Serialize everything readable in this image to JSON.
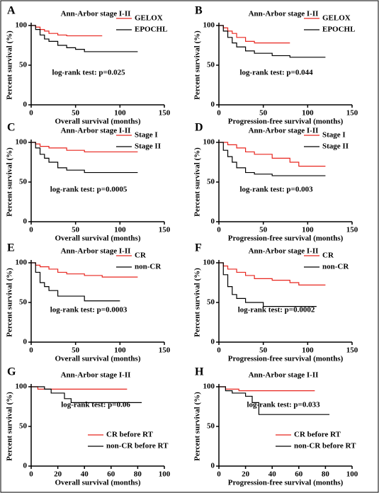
{
  "chart_data": [
    {
      "type": "line",
      "panel": "A",
      "title": "Ann-Arbor stage I-II",
      "xlabel": "Overall survival (months)",
      "ylabel": "Percent survival (%)",
      "annotation": "log-rank test: p=0.025",
      "legend": "upper right",
      "xlim": [
        0,
        150
      ],
      "xticks": [
        0,
        50,
        100,
        150
      ],
      "ylim": [
        0,
        100
      ],
      "yticks": [
        0,
        50,
        100
      ],
      "series": [
        {
          "name": "GELOX",
          "color": "#e8261f",
          "x": [
            0,
            5,
            10,
            15,
            20,
            30,
            40,
            80
          ],
          "values": [
            100,
            98,
            95,
            93,
            90,
            88,
            87,
            87
          ]
        },
        {
          "name": "EPOCHL",
          "color": "#000000",
          "x": [
            0,
            5,
            10,
            15,
            20,
            30,
            40,
            50,
            60,
            120
          ],
          "values": [
            100,
            95,
            88,
            83,
            80,
            75,
            72,
            70,
            67,
            67
          ]
        }
      ]
    },
    {
      "type": "line",
      "panel": "B",
      "title": "Ann-Arbor stage I-II",
      "xlabel": "Progression-free survival (months)",
      "ylabel": "Percent survival (%)",
      "annotation": "log-rank test: p=0.044",
      "legend": "upper right",
      "xlim": [
        0,
        150
      ],
      "xticks": [
        0,
        50,
        100,
        150
      ],
      "ylim": [
        0,
        100
      ],
      "yticks": [
        0,
        50,
        100
      ],
      "series": [
        {
          "name": "GELOX",
          "color": "#e8261f",
          "x": [
            0,
            5,
            10,
            15,
            20,
            30,
            40,
            80
          ],
          "values": [
            100,
            97,
            93,
            90,
            85,
            80,
            78,
            78
          ]
        },
        {
          "name": "EPOCHL",
          "color": "#000000",
          "x": [
            0,
            5,
            10,
            15,
            20,
            30,
            40,
            60,
            80,
            120
          ],
          "values": [
            100,
            93,
            85,
            78,
            73,
            68,
            65,
            62,
            60,
            60
          ]
        }
      ]
    },
    {
      "type": "line",
      "panel": "C",
      "title": "Ann-Arbor stage I-II",
      "xlabel": "Overall survival (months)",
      "ylabel": "Percent survival (%)",
      "annotation": "log-rank test: p=0.0005",
      "legend": "upper right",
      "xlim": [
        0,
        150
      ],
      "xticks": [
        0,
        50,
        100,
        150
      ],
      "ylim": [
        0,
        100
      ],
      "yticks": [
        0,
        50,
        100
      ],
      "series": [
        {
          "name": "Stage I",
          "color": "#e8261f",
          "x": [
            0,
            5,
            10,
            20,
            40,
            60,
            120
          ],
          "values": [
            100,
            98,
            95,
            93,
            90,
            88,
            88
          ]
        },
        {
          "name": "Stage II",
          "color": "#000000",
          "x": [
            0,
            5,
            10,
            15,
            20,
            30,
            40,
            60,
            120
          ],
          "values": [
            100,
            93,
            85,
            80,
            75,
            68,
            65,
            62,
            62
          ]
        }
      ]
    },
    {
      "type": "line",
      "panel": "D",
      "title": "Ann-Arbor stage I-II",
      "xlabel": "Progression-free survival (months)",
      "ylabel": "Percent survival (%)",
      "annotation": "log-rank test: p=0.003",
      "legend": "upper right",
      "xlim": [
        0,
        150
      ],
      "xticks": [
        0,
        50,
        100,
        150
      ],
      "ylim": [
        0,
        100
      ],
      "yticks": [
        0,
        50,
        100
      ],
      "series": [
        {
          "name": "Stage I",
          "color": "#e8261f",
          "x": [
            0,
            10,
            20,
            30,
            40,
            60,
            80,
            90,
            120
          ],
          "values": [
            100,
            97,
            93,
            88,
            85,
            80,
            75,
            70,
            70
          ]
        },
        {
          "name": "Stage II",
          "color": "#000000",
          "x": [
            0,
            5,
            10,
            15,
            20,
            30,
            40,
            60,
            120
          ],
          "values": [
            100,
            90,
            82,
            75,
            68,
            62,
            60,
            58,
            58
          ]
        }
      ]
    },
    {
      "type": "line",
      "panel": "E",
      "title": "Ann-Arbor stage I-II",
      "xlabel": "Overall survival (months)",
      "ylabel": "Percent survival (%)",
      "annotation": "log-rank test: p=0.0003",
      "legend": "upper right",
      "xlim": [
        0,
        150
      ],
      "xticks": [
        0,
        50,
        100,
        150
      ],
      "ylim": [
        0,
        100
      ],
      "yticks": [
        0,
        50,
        100
      ],
      "series": [
        {
          "name": "CR",
          "color": "#e8261f",
          "x": [
            0,
            5,
            10,
            20,
            30,
            40,
            60,
            80,
            120
          ],
          "values": [
            100,
            97,
            95,
            92,
            88,
            86,
            84,
            82,
            82
          ]
        },
        {
          "name": "non-CR",
          "color": "#000000",
          "x": [
            0,
            5,
            10,
            15,
            20,
            30,
            60,
            100
          ],
          "values": [
            100,
            88,
            75,
            70,
            65,
            58,
            52,
            52
          ]
        }
      ]
    },
    {
      "type": "line",
      "panel": "F",
      "title": "Ann-Arbor stage I-II",
      "xlabel": "Progression-free survival (months)",
      "ylabel": "Percent survival (%)",
      "annotation": "log-rank test: p=0.0002",
      "legend": "upper right",
      "xlim": [
        0,
        150
      ],
      "xticks": [
        0,
        50,
        100,
        150
      ],
      "ylim": [
        0,
        100
      ],
      "yticks": [
        0,
        50,
        100
      ],
      "series": [
        {
          "name": "CR",
          "color": "#e8261f",
          "x": [
            0,
            5,
            10,
            20,
            30,
            40,
            60,
            80,
            90,
            120
          ],
          "values": [
            100,
            96,
            92,
            88,
            84,
            80,
            78,
            75,
            72,
            72
          ]
        },
        {
          "name": "non-CR",
          "color": "#000000",
          "x": [
            0,
            5,
            10,
            15,
            20,
            30,
            50,
            110
          ],
          "values": [
            100,
            85,
            70,
            60,
            55,
            50,
            45,
            45
          ]
        }
      ]
    },
    {
      "type": "line",
      "panel": "G",
      "title": "Ann-Arbor stage I-II",
      "xlabel": "Overall survival (months)",
      "ylabel": "Percent survival (%)",
      "annotation": "log-rank test: p=0.06",
      "legend": "lower right",
      "xlim": [
        0,
        100
      ],
      "xticks": [
        0,
        20,
        40,
        60,
        80,
        100
      ],
      "ylim": [
        0,
        100
      ],
      "yticks": [
        0,
        50,
        100
      ],
      "series": [
        {
          "name": "CR before RT",
          "color": "#e8261f",
          "x": [
            0,
            5,
            72
          ],
          "values": [
            100,
            97,
            97
          ]
        },
        {
          "name": "non-CR before RT",
          "color": "#000000",
          "x": [
            0,
            10,
            15,
            25,
            30,
            83
          ],
          "values": [
            100,
            97,
            92,
            85,
            80,
            80
          ]
        }
      ]
    },
    {
      "type": "line",
      "panel": "H",
      "title": "Ann-Arbor stage I-II",
      "xlabel": "Progression-free survival (months)",
      "ylabel": "Percent survival (%)",
      "annotation": "log-rank test: p=0.033",
      "legend": "lower right",
      "xlim": [
        0,
        100
      ],
      "xticks": [
        0,
        20,
        40,
        60,
        80,
        100
      ],
      "ylim": [
        0,
        100
      ],
      "yticks": [
        0,
        50,
        100
      ],
      "series": [
        {
          "name": "CR before RT",
          "color": "#e8261f",
          "x": [
            0,
            5,
            15,
            72
          ],
          "values": [
            100,
            97,
            95,
            95
          ]
        },
        {
          "name": "non-CR before RT",
          "color": "#000000",
          "x": [
            0,
            5,
            10,
            20,
            25,
            30,
            83
          ],
          "values": [
            100,
            95,
            92,
            88,
            80,
            65,
            65
          ]
        }
      ]
    }
  ]
}
